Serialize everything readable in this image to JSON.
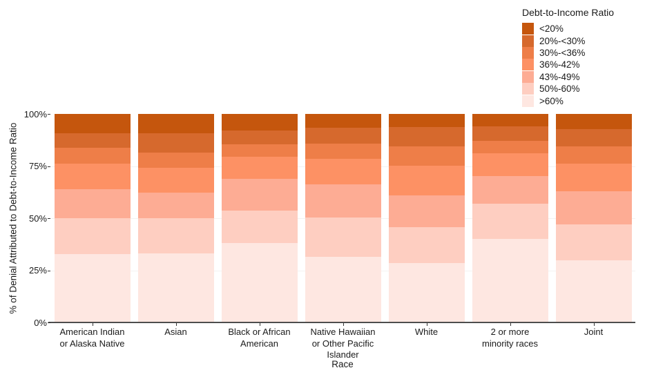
{
  "chart_data": {
    "type": "bar",
    "stacked": true,
    "orientation": "vertical",
    "title": "",
    "xlabel": "Race",
    "ylabel": "% of Denial Attributed to Debt-to-Income Ratio",
    "ylim": [
      0,
      100
    ],
    "background_color": "#ffffff",
    "grid": {
      "values": [
        25,
        50,
        75
      ],
      "color": "#f4f2f1"
    },
    "axis_color": "#4d4d4d",
    "yticks": [
      {
        "value": 100,
        "label": "100%"
      },
      {
        "value": 75,
        "label": "75%"
      },
      {
        "value": 50,
        "label": "50%"
      },
      {
        "value": 25,
        "label": "25%"
      },
      {
        "value": 0,
        "label": "0%"
      }
    ],
    "categories": [
      "American Indian or Alaska Native",
      "Asian",
      "Black or African American",
      "Native Hawaiian or Other Pacific Islander",
      "White",
      "2 or more minority races",
      "Joint"
    ],
    "xtick_label_lines": [
      [
        "American Indian",
        "or Alaska Native"
      ],
      [
        "Asian"
      ],
      [
        "Black or African",
        "American"
      ],
      [
        "Native Hawaiian",
        "or Other Pacific",
        "Islander"
      ],
      [
        "White"
      ],
      [
        "2 or more",
        "minority races"
      ],
      [
        "Joint"
      ]
    ],
    "legend": {
      "title": "Debt-to-Income Ratio",
      "position": "top-right"
    },
    "series_note": "values are percent of each bar, listed per category in order above; series listed top-of-bar first",
    "series": [
      {
        "name": "<20%",
        "color": "#c5560d",
        "values": [
          9.4,
          9.4,
          8.0,
          6.6,
          6.3,
          6.1,
          7.4
        ]
      },
      {
        "name": "20%-<30%",
        "color": "#d6692d",
        "values": [
          6.8,
          9.1,
          6.7,
          7.7,
          9.2,
          6.8,
          8.2
        ]
      },
      {
        "name": "30%-<36%",
        "color": "#ee7e48",
        "values": [
          7.7,
          7.2,
          5.7,
          7.2,
          9.3,
          5.9,
          8.1
        ]
      },
      {
        "name": "36%-42%",
        "color": "#fd9164",
        "values": [
          12.3,
          11.9,
          10.7,
          12.2,
          14.2,
          11.0,
          13.3
        ]
      },
      {
        "name": "43%-49%",
        "color": "#fdac94",
        "values": [
          13.8,
          12.4,
          15.2,
          16.1,
          15.4,
          13.2,
          16.0
        ]
      },
      {
        "name": "50%-60%",
        "color": "#fecec1",
        "values": [
          17.3,
          17.0,
          15.7,
          18.6,
          17.0,
          16.9,
          17.3
        ]
      },
      {
        "name": ">60%",
        "color": "#fee7e1",
        "values": [
          32.7,
          33.0,
          38.0,
          31.6,
          28.6,
          40.1,
          29.7
        ]
      }
    ]
  }
}
